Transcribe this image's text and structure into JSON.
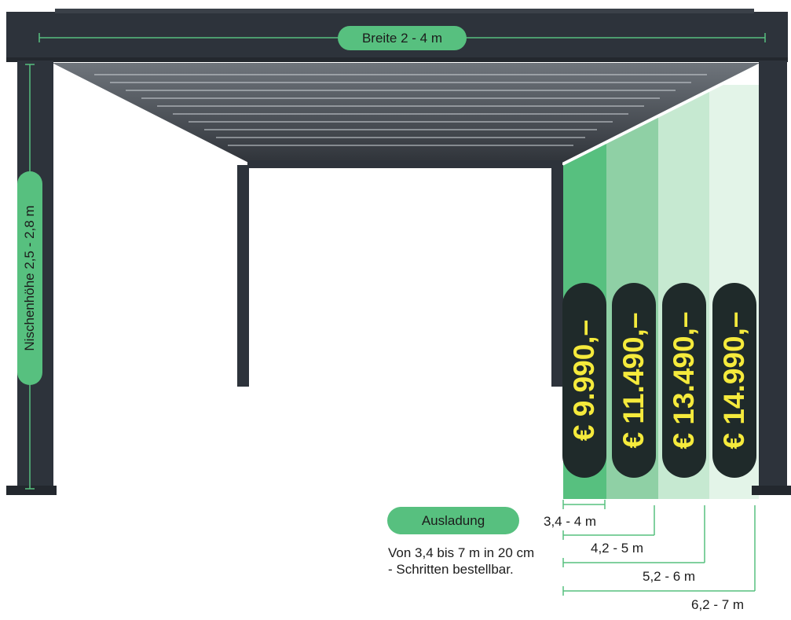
{
  "labels": {
    "width": "Breite 2 - 4 m",
    "height": "Nischenhöhe 2,5 - 2,8 m",
    "projection": "Ausladung",
    "note": "Von 3,4 bis 7 m in 20 cm - Schritten bestellbar."
  },
  "options": [
    {
      "range": "3,4 - 4 m",
      "price": "€ 9.990,–"
    },
    {
      "range": "4,2 - 5 m",
      "price": "€ 11.490,–"
    },
    {
      "range": "5,2 - 6 m",
      "price": "€ 13.490,–"
    },
    {
      "range": "6,2 - 7 m",
      "price": "€ 14.990,–"
    }
  ],
  "colors": {
    "accent": "#57c07f",
    "frame": "#2d333b",
    "price_bg": "#1f2a2a",
    "price_text": "#f5ea3c"
  }
}
